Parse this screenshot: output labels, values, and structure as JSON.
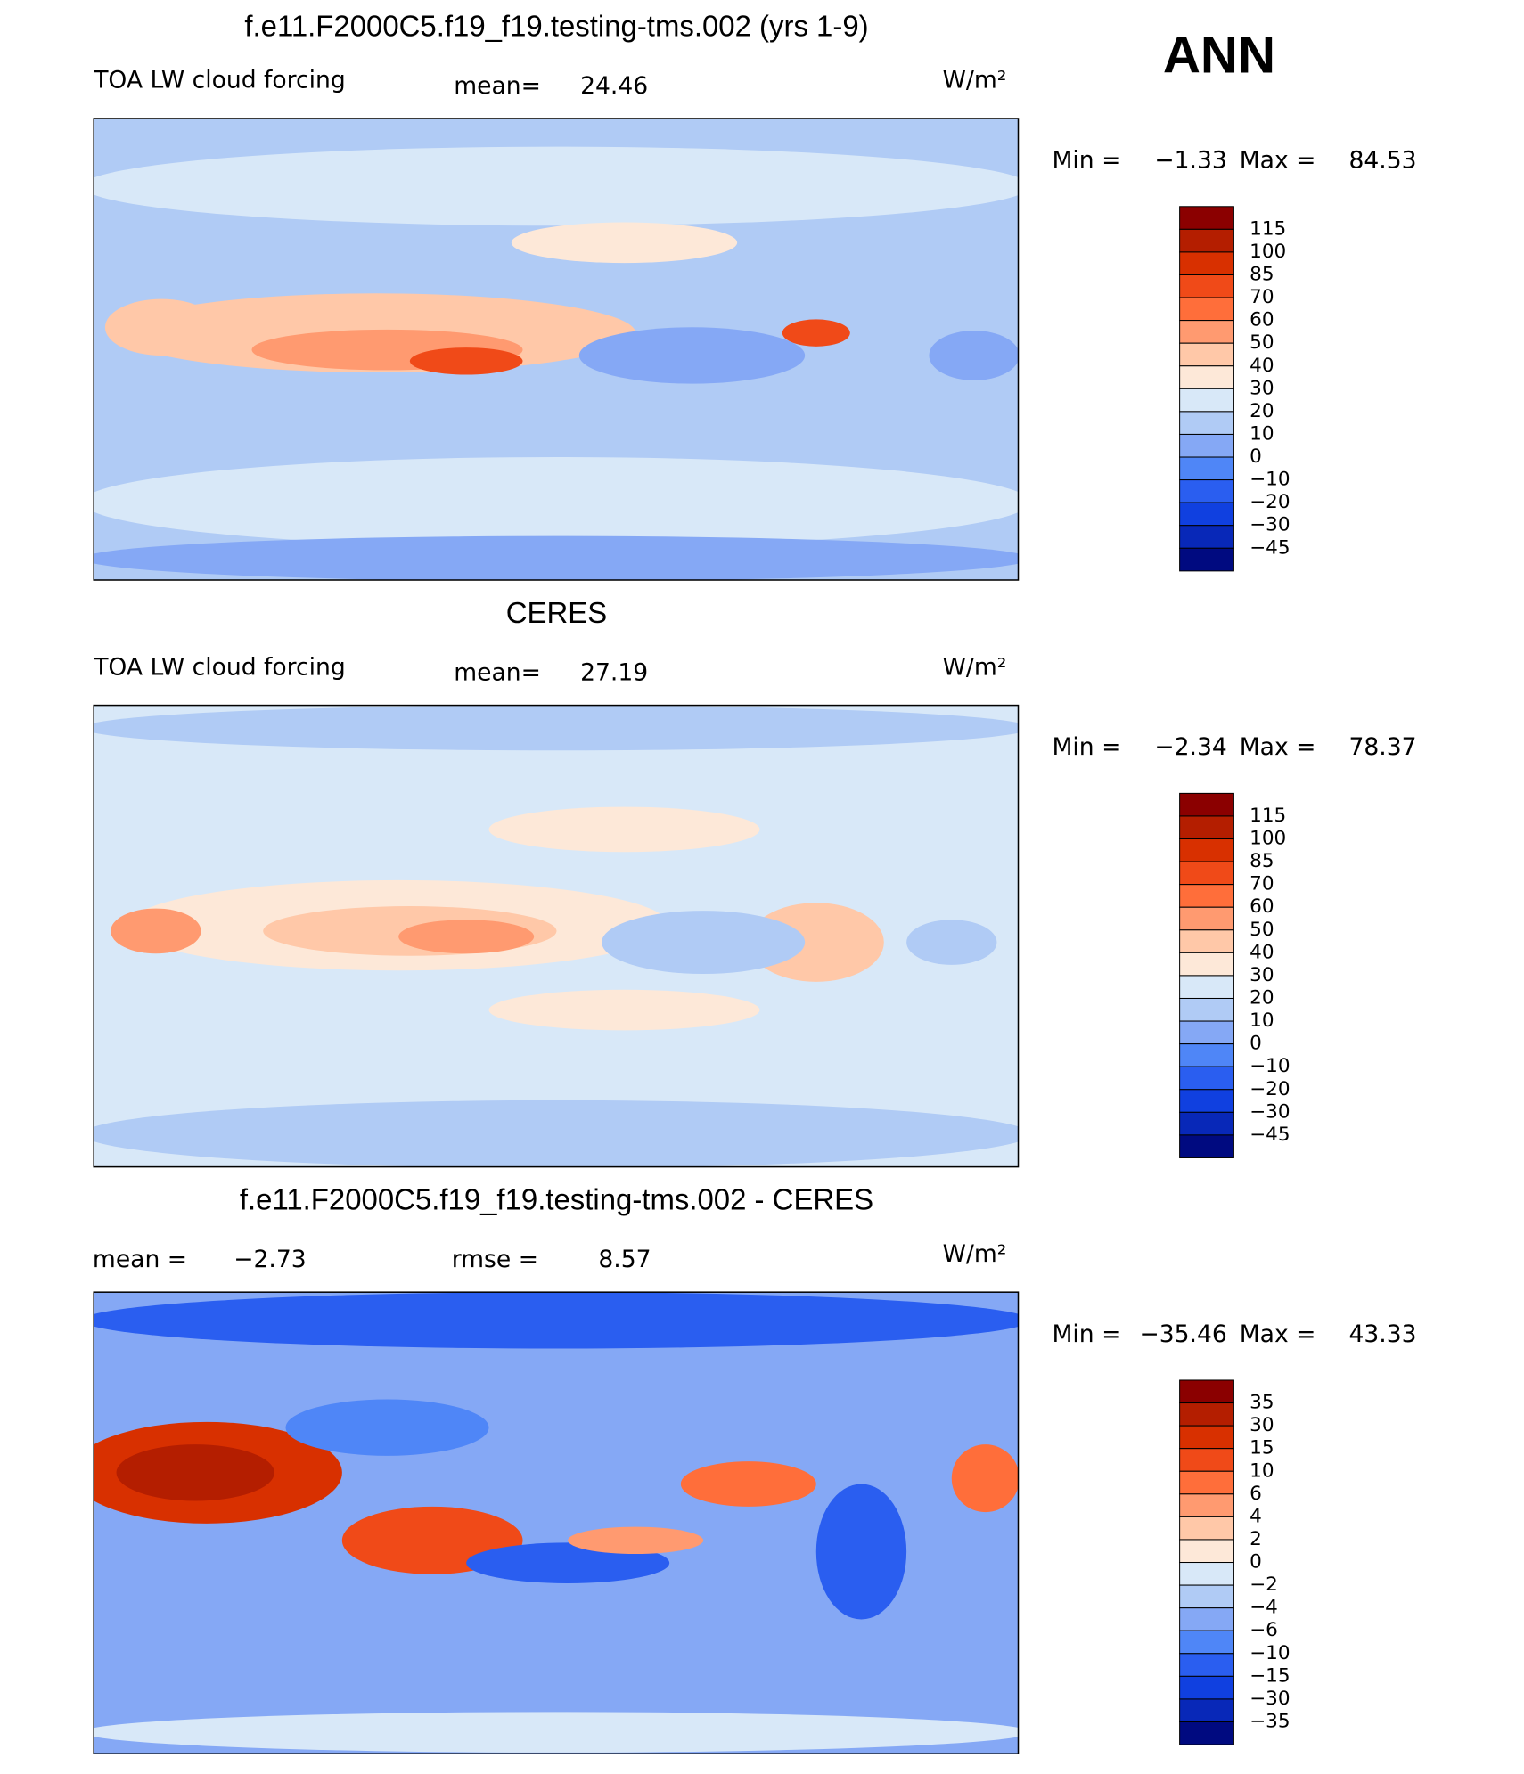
{
  "header": {
    "season": "ANN"
  },
  "panels": [
    {
      "title": "f.e11.F2000C5.f19_f19.testing-tms.002 (yrs 1-9)",
      "left_text": "TOA LW cloud forcing",
      "stats": [
        {
          "label": "mean=",
          "value": "24.46"
        }
      ],
      "units": "W/m²",
      "min_label": "Min =",
      "min": "−1.33",
      "max_label": "Max =",
      "max": "84.53",
      "colorbar": {
        "labels": [
          "115",
          "100",
          "85",
          "70",
          "60",
          "50",
          "40",
          "30",
          "20",
          "10",
          "0",
          "−10",
          "−20",
          "−30",
          "−45"
        ],
        "colors": [
          "#8b0000",
          "#b41e00",
          "#d83000",
          "#f04a18",
          "#ff6e3a",
          "#ff9a70",
          "#ffc8a8",
          "#fde8d8",
          "#d8e8f8",
          "#b0cbf5",
          "#85a8f5",
          "#4f86f7",
          "#2a5ef0",
          "#1040e0",
          "#0828b8",
          "#000a80"
        ]
      }
    },
    {
      "title": "CERES",
      "left_text": "TOA LW cloud forcing",
      "stats": [
        {
          "label": "mean=",
          "value": "27.19"
        }
      ],
      "units": "W/m²",
      "min_label": "Min =",
      "min": "−2.34",
      "max_label": "Max =",
      "max": "78.37",
      "colorbar": {
        "labels": [
          "115",
          "100",
          "85",
          "70",
          "60",
          "50",
          "40",
          "30",
          "20",
          "10",
          "0",
          "−10",
          "−20",
          "−30",
          "−45"
        ],
        "colors": [
          "#8b0000",
          "#b41e00",
          "#d83000",
          "#f04a18",
          "#ff6e3a",
          "#ff9a70",
          "#ffc8a8",
          "#fde8d8",
          "#d8e8f8",
          "#b0cbf5",
          "#85a8f5",
          "#4f86f7",
          "#2a5ef0",
          "#1040e0",
          "#0828b8",
          "#000a80"
        ]
      }
    },
    {
      "title": "f.e11.F2000C5.f19_f19.testing-tms.002 - CERES",
      "stats": [
        {
          "label": "mean =",
          "value": "−2.73"
        },
        {
          "label": "rmse =",
          "value": "8.57"
        }
      ],
      "units": "W/m²",
      "min_label": "Min =",
      "min": "−35.46",
      "max_label": "Max =",
      "max": "43.33",
      "colorbar": {
        "labels": [
          "35",
          "30",
          "15",
          "10",
          "6",
          "4",
          "2",
          "0",
          "−2",
          "−4",
          "−6",
          "−10",
          "−15",
          "−30",
          "−35"
        ],
        "colors": [
          "#8b0000",
          "#b41e00",
          "#d83000",
          "#f04a18",
          "#ff6e3a",
          "#ff9a70",
          "#ffc8a8",
          "#fde8d8",
          "#d8e8f8",
          "#b0cbf5",
          "#85a8f5",
          "#4f86f7",
          "#2a5ef0",
          "#1040e0",
          "#0828b8",
          "#000a80"
        ]
      }
    }
  ]
}
